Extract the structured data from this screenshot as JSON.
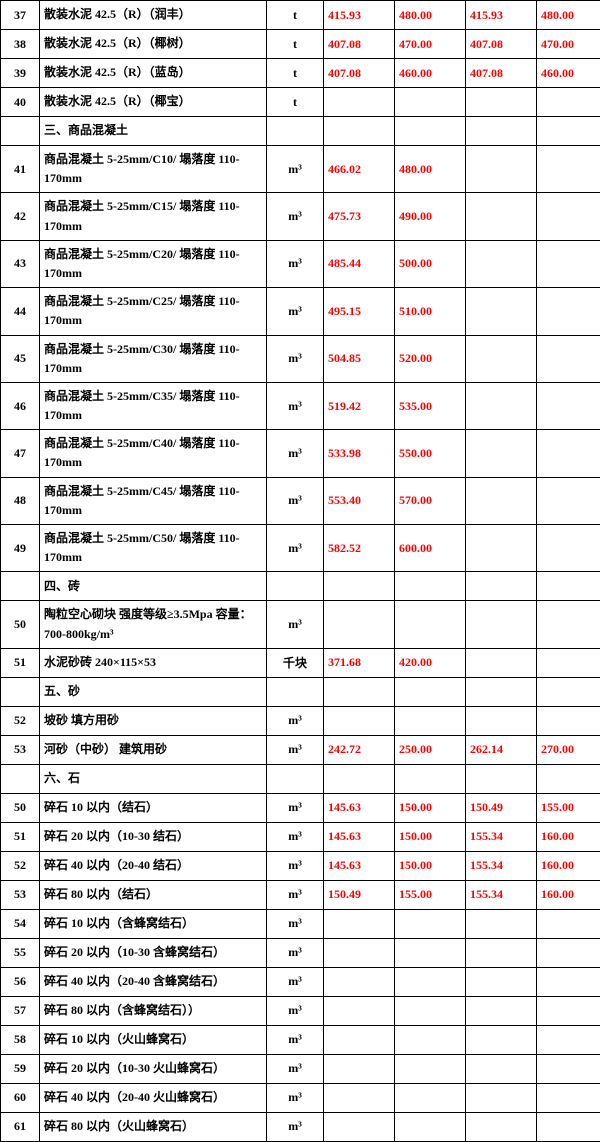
{
  "colors": {
    "text": "#000000",
    "value": "#ff0000",
    "border": "#000000",
    "background": "#ffffff"
  },
  "columns": [
    "num",
    "name",
    "unit",
    "v1",
    "v2",
    "v3",
    "v4"
  ],
  "rows": [
    {
      "num": "37",
      "name": "散装水泥 42.5（R）（润丰）",
      "unit": "t",
      "v1": "415.93",
      "v2": "480.00",
      "v3": "415.93",
      "v4": "480.00",
      "tall": false
    },
    {
      "num": "38",
      "name": "散装水泥 42.5（R）（椰树）",
      "unit": "t",
      "v1": "407.08",
      "v2": "470.00",
      "v3": "407.08",
      "v4": "470.00",
      "tall": false
    },
    {
      "num": "39",
      "name": "散装水泥 42.5（R）（蓝岛）",
      "unit": "t",
      "v1": "407.08",
      "v2": "460.00",
      "v3": "407.08",
      "v4": "460.00",
      "tall": false
    },
    {
      "num": "40",
      "name": "散装水泥 42.5（R）（椰宝）",
      "unit": "t",
      "v1": "",
      "v2": "",
      "v3": "",
      "v4": "",
      "tall": false
    },
    {
      "num": "",
      "name": "三、商品混凝土",
      "unit": "",
      "v1": "",
      "v2": "",
      "v3": "",
      "v4": "",
      "tall": false
    },
    {
      "num": "41",
      "name": "商品混凝土 5-25mm/C10/ 塌落度 110-170mm",
      "unit": "m³",
      "v1": "466.02",
      "v2": "480.00",
      "v3": "",
      "v4": "",
      "tall": true
    },
    {
      "num": "42",
      "name": "商品混凝土 5-25mm/C15/ 塌落度 110-170mm",
      "unit": "m³",
      "v1": "475.73",
      "v2": "490.00",
      "v3": "",
      "v4": "",
      "tall": true
    },
    {
      "num": "43",
      "name": "商品混凝土 5-25mm/C20/ 塌落度 110-170mm",
      "unit": "m³",
      "v1": "485.44",
      "v2": "500.00",
      "v3": "",
      "v4": "",
      "tall": true
    },
    {
      "num": "44",
      "name": "商品混凝土 5-25mm/C25/ 塌落度 110-170mm",
      "unit": "m³",
      "v1": "495.15",
      "v2": "510.00",
      "v3": "",
      "v4": "",
      "tall": true
    },
    {
      "num": "45",
      "name": "商品混凝土 5-25mm/C30/ 塌落度 110-170mm",
      "unit": "m³",
      "v1": "504.85",
      "v2": "520.00",
      "v3": "",
      "v4": "",
      "tall": true
    },
    {
      "num": "46",
      "name": "商品混凝土 5-25mm/C35/ 塌落度 110-170mm",
      "unit": "m³",
      "v1": "519.42",
      "v2": "535.00",
      "v3": "",
      "v4": "",
      "tall": true
    },
    {
      "num": "47",
      "name": "商品混凝土 5-25mm/C40/ 塌落度 110-170mm",
      "unit": "m³",
      "v1": "533.98",
      "v2": "550.00",
      "v3": "",
      "v4": "",
      "tall": true
    },
    {
      "num": "48",
      "name": "商品混凝土 5-25mm/C45/ 塌落度 110-170mm",
      "unit": "m³",
      "v1": "553.40",
      "v2": "570.00",
      "v3": "",
      "v4": "",
      "tall": true
    },
    {
      "num": "49",
      "name": "商品混凝土 5-25mm/C50/ 塌落度 110-170mm",
      "unit": "m³",
      "v1": "582.52",
      "v2": "600.00",
      "v3": "",
      "v4": "",
      "tall": true
    },
    {
      "num": "",
      "name": "四、砖",
      "unit": "",
      "v1": "",
      "v2": "",
      "v3": "",
      "v4": "",
      "tall": false
    },
    {
      "num": "50",
      "name": "陶粒空心砌块 强度等级≥3.5Mpa 容量：700-800kg/m³",
      "unit": "m³",
      "v1": "",
      "v2": "",
      "v3": "",
      "v4": "",
      "tall": true
    },
    {
      "num": "51",
      "name": "水泥砂砖 240×115×53",
      "unit": "千块",
      "v1": "371.68",
      "v2": "420.00",
      "v3": "",
      "v4": "",
      "tall": false
    },
    {
      "num": "",
      "name": "五、砂",
      "unit": "",
      "v1": "",
      "v2": "",
      "v3": "",
      "v4": "",
      "tall": false
    },
    {
      "num": "52",
      "name": "坡砂 填方用砂",
      "unit": "m³",
      "v1": "",
      "v2": "",
      "v3": "",
      "v4": "",
      "tall": false
    },
    {
      "num": "53",
      "name": "河砂（中砂） 建筑用砂",
      "unit": "m³",
      "v1": "242.72",
      "v2": "250.00",
      "v3": "262.14",
      "v4": "270.00",
      "tall": false
    },
    {
      "num": "",
      "name": "六、石",
      "unit": "",
      "v1": "",
      "v2": "",
      "v3": "",
      "v4": "",
      "tall": false
    },
    {
      "num": "50",
      "name": "碎石 10 以内（结石）",
      "unit": "m³",
      "v1": "145.63",
      "v2": "150.00",
      "v3": "150.49",
      "v4": "155.00",
      "tall": false
    },
    {
      "num": "51",
      "name": "碎石 20 以内（10-30 结石）",
      "unit": "m³",
      "v1": "145.63",
      "v2": "150.00",
      "v3": "155.34",
      "v4": "160.00",
      "tall": false
    },
    {
      "num": "52",
      "name": "碎石 40 以内（20-40 结石）",
      "unit": "m³",
      "v1": "145.63",
      "v2": "150.00",
      "v3": "155.34",
      "v4": "160.00",
      "tall": false
    },
    {
      "num": "53",
      "name": "碎石 80 以内（结石）",
      "unit": "m³",
      "v1": "150.49",
      "v2": "155.00",
      "v3": "155.34",
      "v4": "160.00",
      "tall": false
    },
    {
      "num": "54",
      "name": "碎石 10 以内（含蜂窝结石）",
      "unit": "m³",
      "v1": "",
      "v2": "",
      "v3": "",
      "v4": "",
      "tall": false
    },
    {
      "num": "55",
      "name": "碎石 20 以内（10-30 含蜂窝结石）",
      "unit": "m³",
      "v1": "",
      "v2": "",
      "v3": "",
      "v4": "",
      "tall": false
    },
    {
      "num": "56",
      "name": "碎石 40 以内（20-40 含蜂窝结石）",
      "unit": "m³",
      "v1": "",
      "v2": "",
      "v3": "",
      "v4": "",
      "tall": false
    },
    {
      "num": "57",
      "name": "碎石 80 以内（含蜂窝结石））",
      "unit": "m³",
      "v1": "",
      "v2": "",
      "v3": "",
      "v4": "",
      "tall": false
    },
    {
      "num": "58",
      "name": "碎石 10 以内（火山蜂窝石）",
      "unit": "m³",
      "v1": "",
      "v2": "",
      "v3": "",
      "v4": "",
      "tall": false
    },
    {
      "num": "59",
      "name": "碎石 20 以内（10-30 火山蜂窝石）",
      "unit": "m³",
      "v1": "",
      "v2": "",
      "v3": "",
      "v4": "",
      "tall": false
    },
    {
      "num": "60",
      "name": "碎石 40 以内（20-40 火山蜂窝石）",
      "unit": "m³",
      "v1": "",
      "v2": "",
      "v3": "",
      "v4": "",
      "tall": false
    },
    {
      "num": "61",
      "name": "碎石 80 以内（火山蜂窝石）",
      "unit": "m³",
      "v1": "",
      "v2": "",
      "v3": "",
      "v4": "",
      "tall": false
    }
  ]
}
